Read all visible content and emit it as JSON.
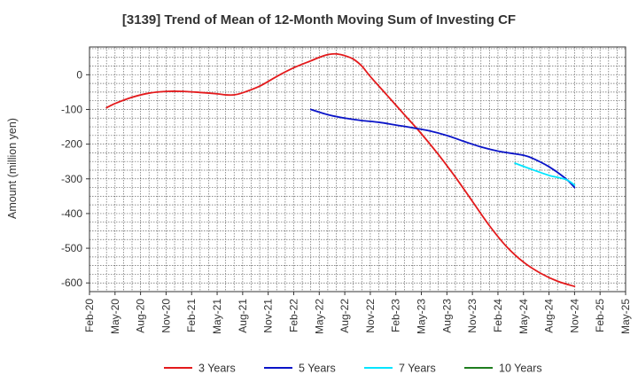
{
  "chart_data": {
    "type": "line",
    "title": "[3139]  Trend of Mean of 12-Month Moving Sum of Investing CF",
    "xlabel": "",
    "ylabel": "Amount (million yen)",
    "ylim": [
      -625,
      80
    ],
    "yticks": [
      0,
      -100,
      -200,
      -300,
      -400,
      -500,
      -600
    ],
    "x_range": [
      0,
      63
    ],
    "x_ticks": [
      {
        "i": 0,
        "label": "Feb-20"
      },
      {
        "i": 3,
        "label": "May-20"
      },
      {
        "i": 6,
        "label": "Aug-20"
      },
      {
        "i": 9,
        "label": "Nov-20"
      },
      {
        "i": 12,
        "label": "Feb-21"
      },
      {
        "i": 15,
        "label": "May-21"
      },
      {
        "i": 18,
        "label": "Aug-21"
      },
      {
        "i": 21,
        "label": "Nov-21"
      },
      {
        "i": 24,
        "label": "Feb-22"
      },
      {
        "i": 27,
        "label": "May-22"
      },
      {
        "i": 30,
        "label": "Aug-22"
      },
      {
        "i": 33,
        "label": "Nov-22"
      },
      {
        "i": 36,
        "label": "Feb-23"
      },
      {
        "i": 39,
        "label": "May-23"
      },
      {
        "i": 42,
        "label": "Aug-23"
      },
      {
        "i": 45,
        "label": "Nov-23"
      },
      {
        "i": 48,
        "label": "Feb-24"
      },
      {
        "i": 51,
        "label": "May-24"
      },
      {
        "i": 54,
        "label": "Aug-24"
      },
      {
        "i": 57,
        "label": "Nov-24"
      },
      {
        "i": 60,
        "label": "Feb-25"
      },
      {
        "i": 63,
        "label": "May-25"
      }
    ],
    "grid": true,
    "legend_position": "bottom",
    "series": [
      {
        "name": "3 Years",
        "color": "#e31a1c",
        "points": [
          [
            2,
            -95
          ],
          [
            3,
            -83
          ],
          [
            5,
            -65
          ],
          [
            7,
            -53
          ],
          [
            9,
            -48
          ],
          [
            11,
            -48
          ],
          [
            13,
            -51
          ],
          [
            15,
            -55
          ],
          [
            16,
            -58
          ],
          [
            17,
            -58
          ],
          [
            18,
            -52
          ],
          [
            20,
            -33
          ],
          [
            22,
            -5
          ],
          [
            24,
            20
          ],
          [
            26,
            40
          ],
          [
            27,
            50
          ],
          [
            28,
            58
          ],
          [
            29,
            60
          ],
          [
            30,
            55
          ],
          [
            31,
            45
          ],
          [
            32,
            25
          ],
          [
            33,
            -5
          ],
          [
            35,
            -60
          ],
          [
            37,
            -115
          ],
          [
            39,
            -170
          ],
          [
            41,
            -230
          ],
          [
            43,
            -295
          ],
          [
            45,
            -365
          ],
          [
            47,
            -435
          ],
          [
            49,
            -495
          ],
          [
            51,
            -540
          ],
          [
            53,
            -572
          ],
          [
            55,
            -595
          ],
          [
            57,
            -610
          ]
        ]
      },
      {
        "name": "5 Years",
        "color": "#0a14c8",
        "points": [
          [
            26,
            -100
          ],
          [
            28,
            -115
          ],
          [
            30,
            -125
          ],
          [
            32,
            -132
          ],
          [
            34,
            -137
          ],
          [
            36,
            -145
          ],
          [
            38,
            -153
          ],
          [
            40,
            -162
          ],
          [
            42,
            -175
          ],
          [
            44,
            -192
          ],
          [
            46,
            -208
          ],
          [
            48,
            -220
          ],
          [
            50,
            -228
          ],
          [
            51,
            -232
          ],
          [
            52,
            -240
          ],
          [
            54,
            -265
          ],
          [
            56,
            -300
          ],
          [
            57,
            -325
          ]
        ]
      },
      {
        "name": "7 Years",
        "color": "#00e5ff",
        "points": [
          [
            50,
            -255
          ],
          [
            52,
            -273
          ],
          [
            54,
            -290
          ],
          [
            56,
            -302
          ],
          [
            57,
            -318
          ]
        ]
      },
      {
        "name": "10 Years",
        "color": "#1e7d1e",
        "points": []
      }
    ]
  }
}
